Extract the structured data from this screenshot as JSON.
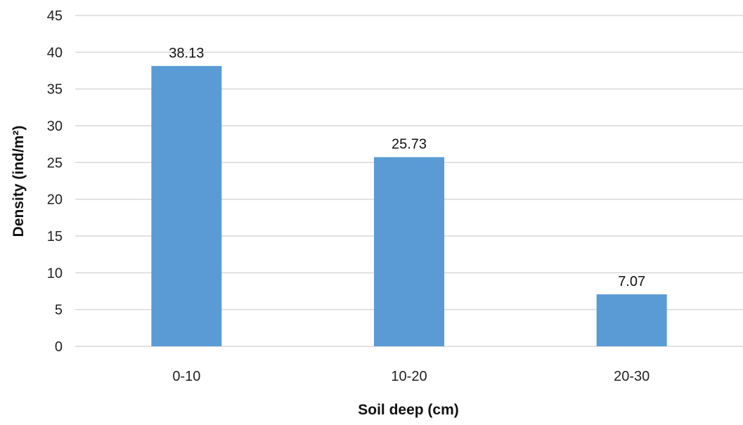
{
  "chart_data": {
    "type": "bar",
    "categories": [
      "0-10",
      "10-20",
      "20-30"
    ],
    "values": [
      38.13,
      25.73,
      7.07
    ],
    "value_labels": [
      "38.13",
      "25.73",
      "7.07"
    ],
    "title": "",
    "xlabel": "Soil deep (cm)",
    "ylabel": "Density (ind/m²)",
    "ylim": [
      0,
      45
    ],
    "y_ticks": [
      "0",
      "5",
      "10",
      "15",
      "20",
      "25",
      "30",
      "35",
      "40",
      "45"
    ],
    "grid": true,
    "legend": "none",
    "bar_color": "#5b9bd5",
    "grid_color": "#d9d9d9"
  }
}
